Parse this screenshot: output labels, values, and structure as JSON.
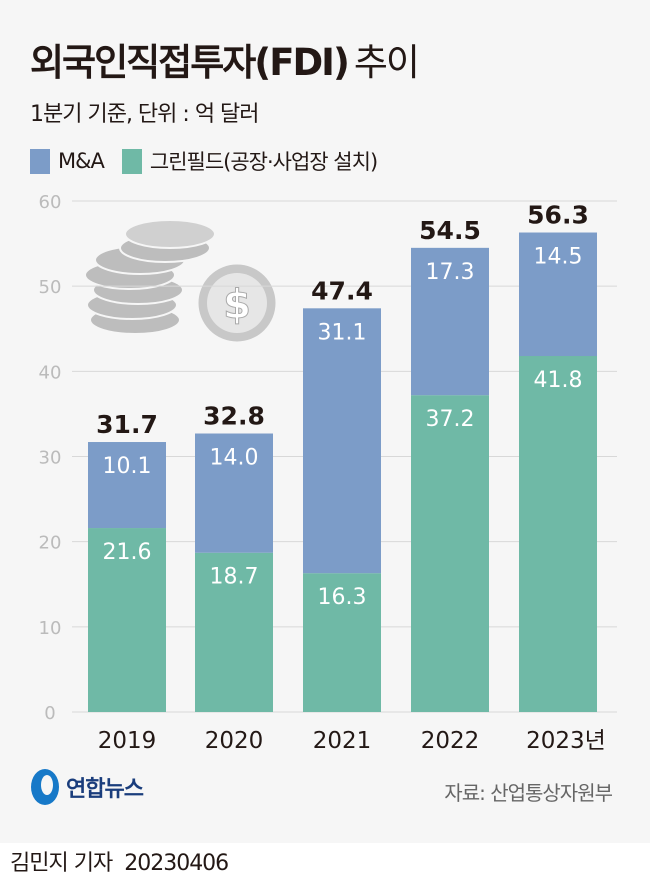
{
  "title": {
    "main": "외국인직접투자(FDI)",
    "suffix": "추이"
  },
  "subtitle": "1분기 기준, 단위 : 억 달러",
  "source": "자료: 산업통상자원부",
  "logo": "연합뉴스",
  "byline": {
    "author": "김민지 기자",
    "date": "20230406"
  },
  "colors": {
    "ma": "#7c9cc8",
    "greenfield": "#6fb9a6",
    "background": "#f6f6f6"
  },
  "chart_data": {
    "type": "bar",
    "stacked": true,
    "categories": [
      "2019",
      "2020",
      "2021",
      "2022",
      "2023년"
    ],
    "series": [
      {
        "name": "그린필드(공장·사업장 설치)",
        "values": [
          21.6,
          18.7,
          16.3,
          37.2,
          41.8
        ]
      },
      {
        "name": "M&A",
        "values": [
          10.1,
          14.0,
          31.1,
          17.3,
          14.5
        ]
      }
    ],
    "value_labels": {
      "greenfield": [
        "21.6",
        "18.7",
        "16.3",
        "37.2",
        "41.8"
      ],
      "ma": [
        "10.1",
        "14.0",
        "31.1",
        "17.3",
        "14.5"
      ]
    },
    "totals": [
      "31.7",
      "32.8",
      "47.4",
      "54.5",
      "56.3"
    ],
    "legend": [
      "M&A",
      "그린필드(공장·사업장 설치)"
    ],
    "yticks": [
      "0",
      "10",
      "20",
      "30",
      "40",
      "50",
      "60"
    ],
    "ylim": [
      0,
      60
    ],
    "grid": true,
    "legend_position": "top-left"
  }
}
